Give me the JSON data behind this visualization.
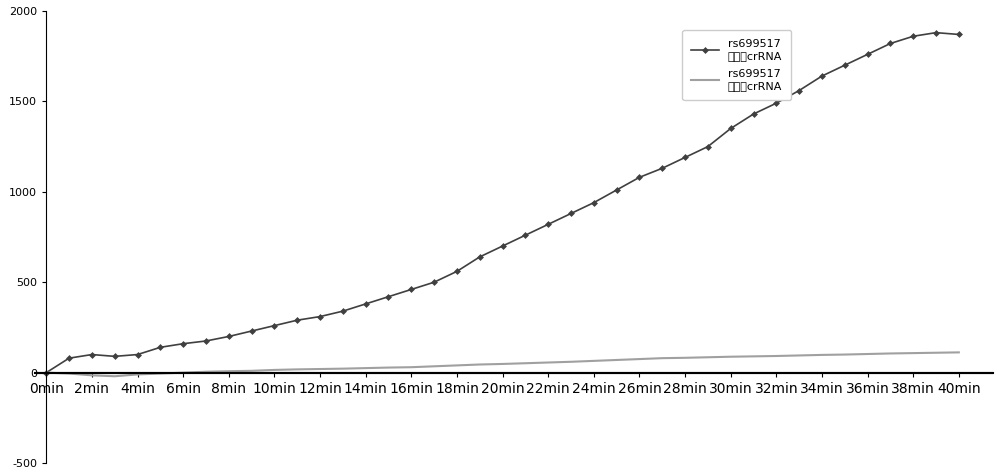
{
  "x_labels": [
    "0min",
    "2min",
    "4min",
    "6min",
    "8min",
    "10min",
    "12min",
    "14min",
    "16min",
    "18min",
    "20min",
    "22min",
    "24min",
    "26min",
    "28min",
    "30min",
    "32min",
    "34min",
    "36min",
    "38min",
    "40min"
  ],
  "x_values": [
    0,
    2,
    4,
    6,
    8,
    10,
    12,
    14,
    16,
    18,
    20,
    22,
    24,
    26,
    28,
    30,
    32,
    34,
    36,
    38,
    40
  ],
  "mutant_values": [
    0,
    80,
    100,
    90,
    100,
    140,
    160,
    175,
    200,
    230,
    260,
    290,
    310,
    340,
    380,
    420,
    460,
    500,
    560,
    640,
    700,
    760,
    820,
    880,
    940,
    1010,
    1080,
    1130,
    1190,
    1250,
    1350,
    1430,
    1490,
    1560,
    1640,
    1700,
    1760,
    1820,
    1860,
    1880,
    1870
  ],
  "wildtype_values": [
    0,
    -5,
    -15,
    -20,
    -10,
    -5,
    0,
    5,
    8,
    10,
    15,
    18,
    20,
    22,
    25,
    28,
    30,
    35,
    40,
    45,
    48,
    52,
    56,
    60,
    65,
    70,
    75,
    80,
    82,
    85,
    88,
    90,
    92,
    95,
    98,
    100,
    103,
    106,
    108,
    110,
    112
  ],
  "mutant_color": "#404040",
  "wildtype_color": "#a0a0a0",
  "background_color": "#ffffff",
  "ylim": [
    -500,
    2000
  ],
  "yticks": [
    -500,
    0,
    500,
    1000,
    1500,
    2000
  ],
  "legend1_line1": "rs699517",
  "legend1_line2": "突变型crRNA",
  "legend2_line1": "rs699517",
  "legend2_line2": "野生型crRNA",
  "figsize": [
    10.0,
    4.76
  ],
  "dpi": 100
}
